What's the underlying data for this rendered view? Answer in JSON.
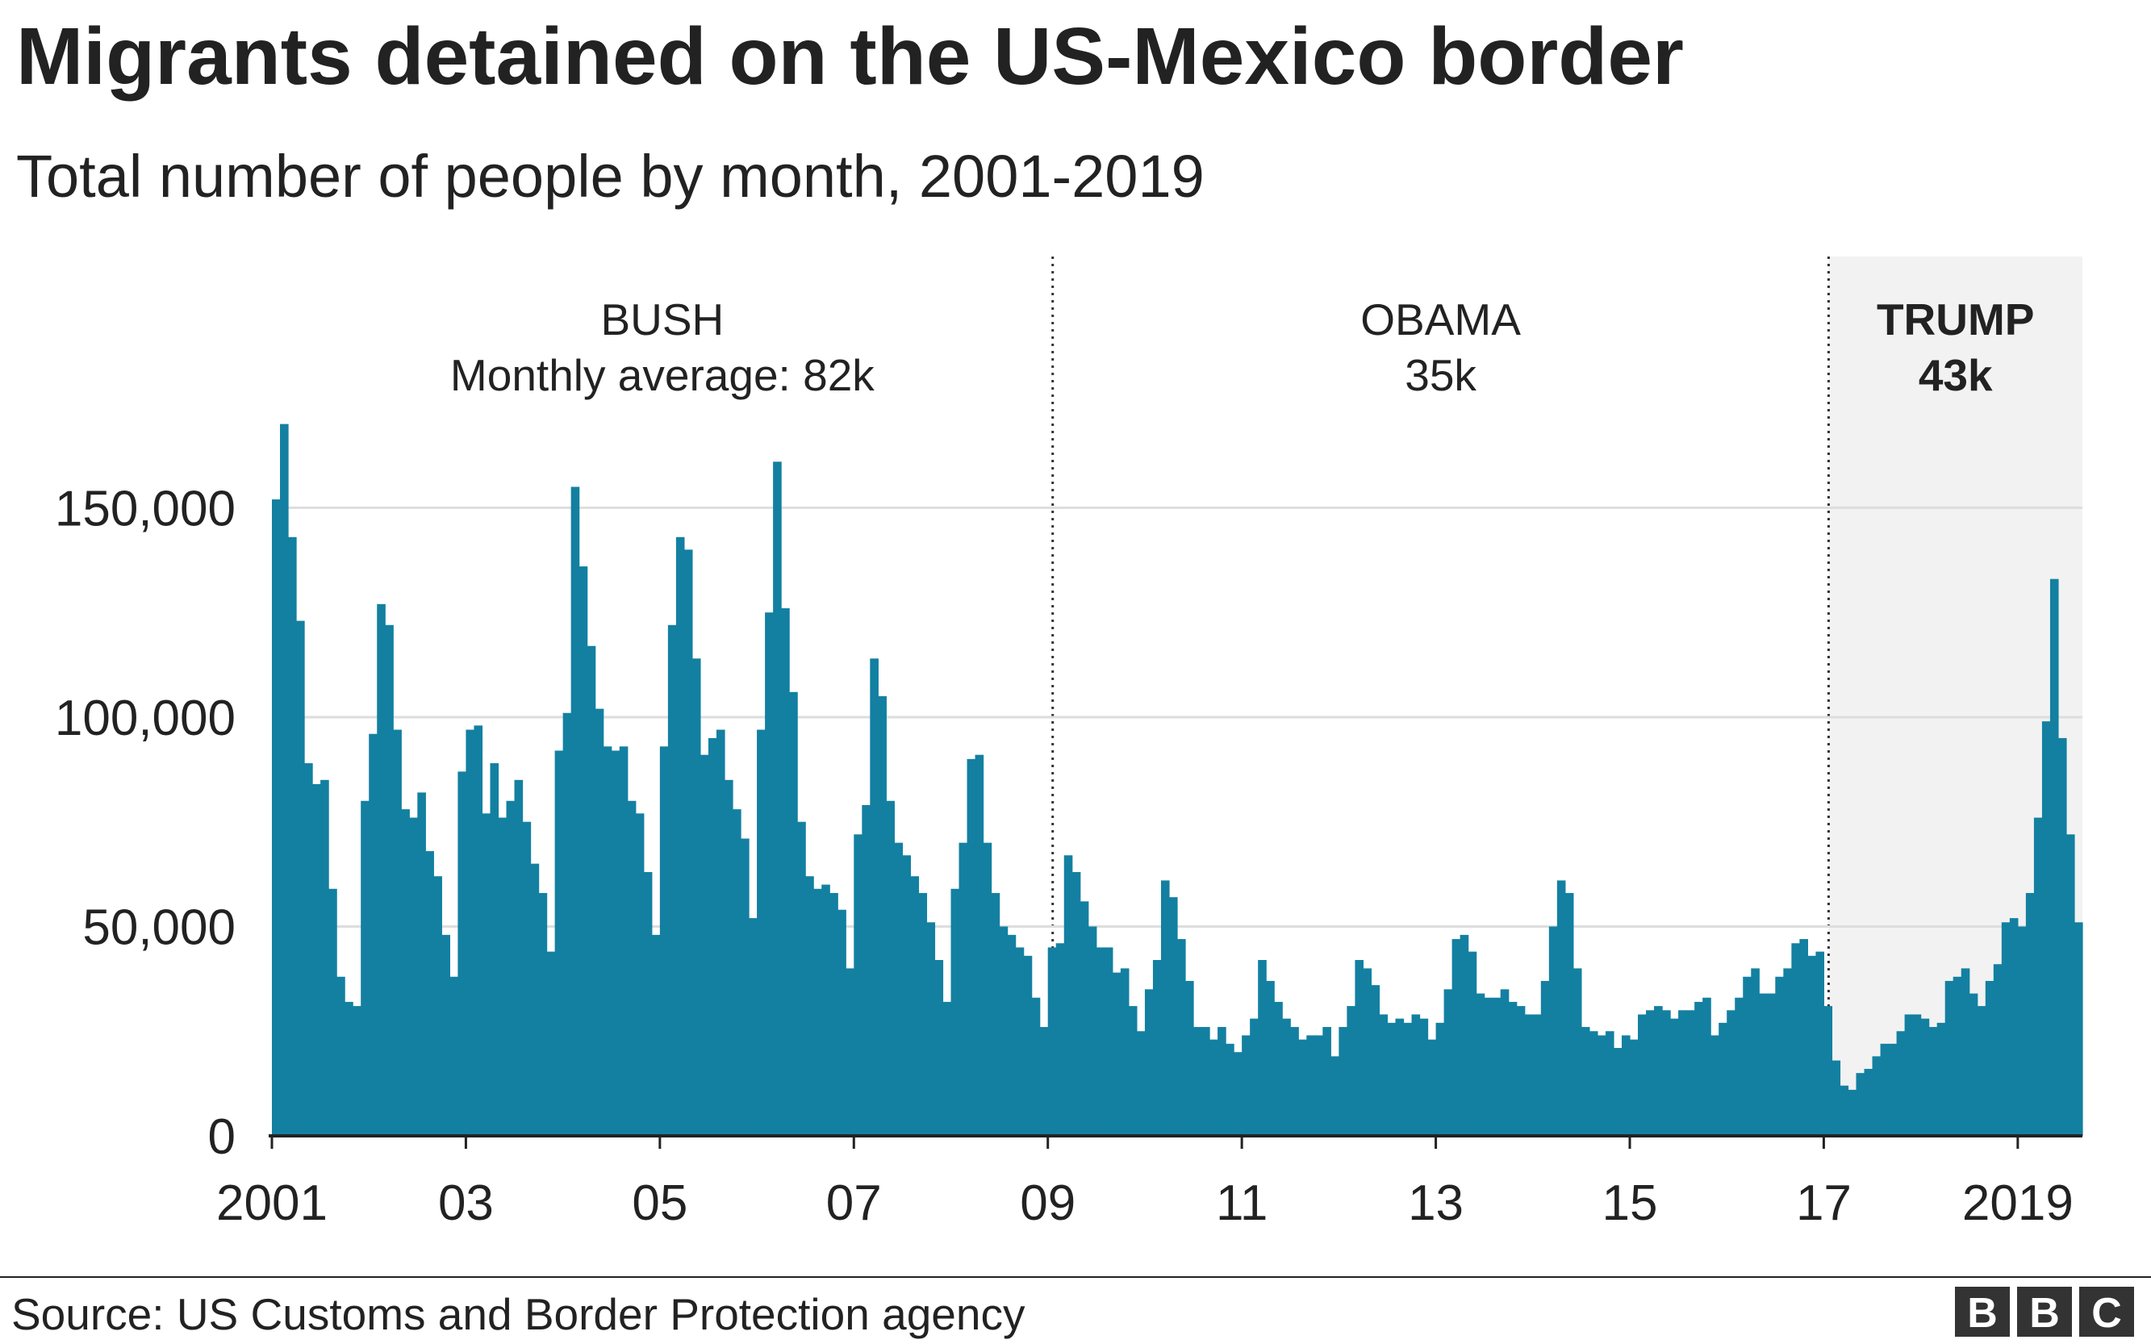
{
  "chart_data": {
    "type": "bar",
    "title": "Migrants detained on the US-Mexico border",
    "subtitle": "Total number of people by month, 2001-2019",
    "source": "Source: US Customs and Border Protection agency",
    "logo": [
      "B",
      "B",
      "C"
    ],
    "color": "#1380a1",
    "grid": true,
    "ylim": [
      0,
      210000
    ],
    "yticks": [
      0,
      {
        "value": 50000,
        "label": "50,000"
      },
      {
        "value": 100000,
        "label": "100,000"
      },
      {
        "value": 150000,
        "label": "150,000"
      }
    ],
    "regions": [
      {
        "name": "BUSH",
        "note": "Monthly average: 82k",
        "start": "2001"
      },
      {
        "name": "OBAMA",
        "note": "35k",
        "start": "09"
      },
      {
        "name": "TRUMP",
        "note": "43k",
        "start": "17",
        "highlight": true
      }
    ],
    "categories": [
      "2001",
      null,
      null,
      null,
      null,
      null,
      null,
      null,
      null,
      null,
      null,
      null,
      null,
      null,
      null,
      null,
      null,
      null,
      null,
      null,
      null,
      null,
      null,
      null,
      "03",
      null,
      null,
      null,
      null,
      null,
      null,
      null,
      null,
      null,
      null,
      null,
      null,
      null,
      null,
      null,
      null,
      null,
      null,
      null,
      null,
      null,
      null,
      null,
      "05",
      null,
      null,
      null,
      null,
      null,
      null,
      null,
      null,
      null,
      null,
      null,
      null,
      null,
      null,
      null,
      null,
      null,
      null,
      null,
      null,
      null,
      null,
      null,
      "07",
      null,
      null,
      null,
      null,
      null,
      null,
      null,
      null,
      null,
      null,
      null,
      null,
      null,
      null,
      null,
      null,
      null,
      null,
      null,
      null,
      null,
      null,
      null,
      "09",
      null,
      null,
      null,
      null,
      null,
      null,
      null,
      null,
      null,
      null,
      null,
      null,
      null,
      null,
      null,
      null,
      null,
      null,
      null,
      null,
      null,
      null,
      null,
      "11",
      null,
      null,
      null,
      null,
      null,
      null,
      null,
      null,
      null,
      null,
      null,
      null,
      null,
      null,
      null,
      null,
      null,
      null,
      null,
      null,
      null,
      null,
      null,
      "13",
      null,
      null,
      null,
      null,
      null,
      null,
      null,
      null,
      null,
      null,
      null,
      null,
      null,
      null,
      null,
      null,
      null,
      null,
      null,
      null,
      null,
      null,
      null,
      "15",
      null,
      null,
      null,
      null,
      null,
      null,
      null,
      null,
      null,
      null,
      null,
      null,
      null,
      null,
      null,
      null,
      null,
      null,
      null,
      null,
      null,
      null,
      null,
      "17",
      null,
      null,
      null,
      null,
      null,
      null,
      null,
      null,
      null,
      null,
      null,
      null,
      null,
      null,
      null,
      null,
      null,
      null,
      null,
      null,
      null,
      null,
      null,
      "2019",
      null,
      null,
      null,
      null,
      null,
      null,
      null
    ],
    "values": [
      152000,
      170000,
      143000,
      123000,
      89000,
      84000,
      85000,
      59000,
      38000,
      32000,
      31000,
      80000,
      96000,
      127000,
      122000,
      97000,
      78000,
      76000,
      82000,
      68000,
      62000,
      48000,
      38000,
      87000,
      97000,
      98000,
      77000,
      89000,
      76000,
      80000,
      85000,
      75000,
      65000,
      58000,
      44000,
      92000,
      101000,
      155000,
      136000,
      117000,
      102000,
      93000,
      92000,
      93000,
      80000,
      77000,
      63000,
      48000,
      93000,
      122000,
      143000,
      140000,
      114000,
      91000,
      95000,
      97000,
      85000,
      78000,
      71000,
      52000,
      97000,
      125000,
      161000,
      126000,
      106000,
      75000,
      62000,
      59000,
      60000,
      58000,
      54000,
      40000,
      72000,
      79000,
      114000,
      105000,
      80000,
      70000,
      67000,
      62000,
      58000,
      51000,
      42000,
      32000,
      59000,
      70000,
      90000,
      91000,
      70000,
      58000,
      50000,
      48000,
      45000,
      43000,
      33000,
      26000,
      45000,
      46000,
      67000,
      63000,
      56000,
      50000,
      45000,
      45000,
      39000,
      40000,
      31000,
      25000,
      35000,
      42000,
      61000,
      57000,
      47000,
      37000,
      26000,
      26000,
      23000,
      26000,
      22000,
      20000,
      24000,
      28000,
      42000,
      37000,
      32000,
      28000,
      26000,
      23000,
      24000,
      24000,
      26000,
      19000,
      26000,
      31000,
      42000,
      40000,
      36000,
      29000,
      27000,
      28000,
      27000,
      29000,
      28000,
      23000,
      27000,
      35000,
      47000,
      48000,
      44000,
      34000,
      33000,
      33000,
      35000,
      32000,
      31000,
      29000,
      29000,
      37000,
      50000,
      61000,
      58000,
      40000,
      26000,
      25000,
      24000,
      25000,
      21000,
      24000,
      23000,
      29000,
      30000,
      31000,
      30000,
      28000,
      30000,
      30000,
      32000,
      33000,
      24000,
      27000,
      30000,
      33000,
      38000,
      40000,
      34000,
      34000,
      38000,
      40000,
      46000,
      47000,
      43000,
      44000,
      31000,
      18000,
      12000,
      11000,
      15000,
      16000,
      19000,
      22000,
      22000,
      25000,
      29000,
      29000,
      28000,
      26000,
      27000,
      37000,
      38000,
      40000,
      34000,
      31000,
      37000,
      41000,
      51000,
      52000,
      50000,
      58000,
      76000,
      99000,
      133000,
      95000,
      72000,
      51000
    ]
  }
}
